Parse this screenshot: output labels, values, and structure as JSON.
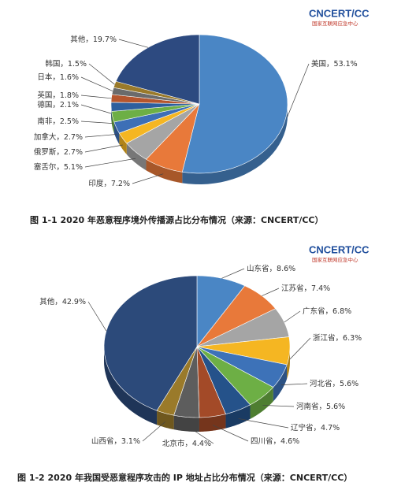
{
  "chart_data": [
    {
      "type": "pie",
      "title": "图 1-1   2020 年恶意程序境外传播源占比分布情况（来源：CNCERT/CC）",
      "logo": "CNCERT/CC",
      "logo_subtitle": "国家互联网应急中心",
      "label_separator": "，",
      "categories": [
        "美国",
        "印度",
        "塞舌尔",
        "俄罗斯",
        "加拿大",
        "南非",
        "德国",
        "英国",
        "日本",
        "韩国",
        "其他"
      ],
      "values": [
        53.1,
        7.2,
        5.1,
        2.7,
        2.7,
        2.5,
        2.1,
        1.8,
        1.6,
        1.5,
        19.7
      ],
      "value_labels": [
        "53.1%",
        "7.2%",
        "5.1%",
        "2.7%",
        "2.7%",
        "2.5%",
        "2.1%",
        "1.8%",
        "1.6%",
        "1.5%",
        "19.7%"
      ],
      "colors": [
        "#4a86c5",
        "#e8793a",
        "#a5a5a5",
        "#f5b622",
        "#3d6fb6",
        "#6daf45",
        "#2e5f9e",
        "#b5562e",
        "#6b6b6b",
        "#9a7a2a",
        "#2d4a80"
      ]
    },
    {
      "type": "pie",
      "title": "图 1-2   2020 年我国受恶意程序攻击的 IP 地址占比分布情况（来源：CNCERT/CC）",
      "logo": "CNCERT/CC",
      "logo_subtitle": "国家互联网应急中心",
      "label_separator": "，",
      "categories": [
        "山东省",
        "江苏省",
        "广东省",
        "浙江省",
        "河北省",
        "河南省",
        "辽宁省",
        "四川省",
        "北京市",
        "山西省",
        "其他"
      ],
      "values": [
        8.6,
        7.4,
        6.8,
        6.3,
        5.6,
        5.6,
        4.7,
        4.6,
        4.4,
        3.1,
        42.9
      ],
      "value_labels": [
        "8.6%",
        "7.4%",
        "6.8%",
        "6.3%",
        "5.6%",
        "5.6%",
        "4.7%",
        "4.6%",
        "4.4%",
        "3.1%",
        "42.9%"
      ],
      "colors": [
        "#4a86c5",
        "#e8793a",
        "#a5a5a5",
        "#f5b622",
        "#3d72b8",
        "#6daf45",
        "#25528a",
        "#a34a28",
        "#5d5d5d",
        "#9a7a2a",
        "#2c4a7a"
      ]
    }
  ]
}
